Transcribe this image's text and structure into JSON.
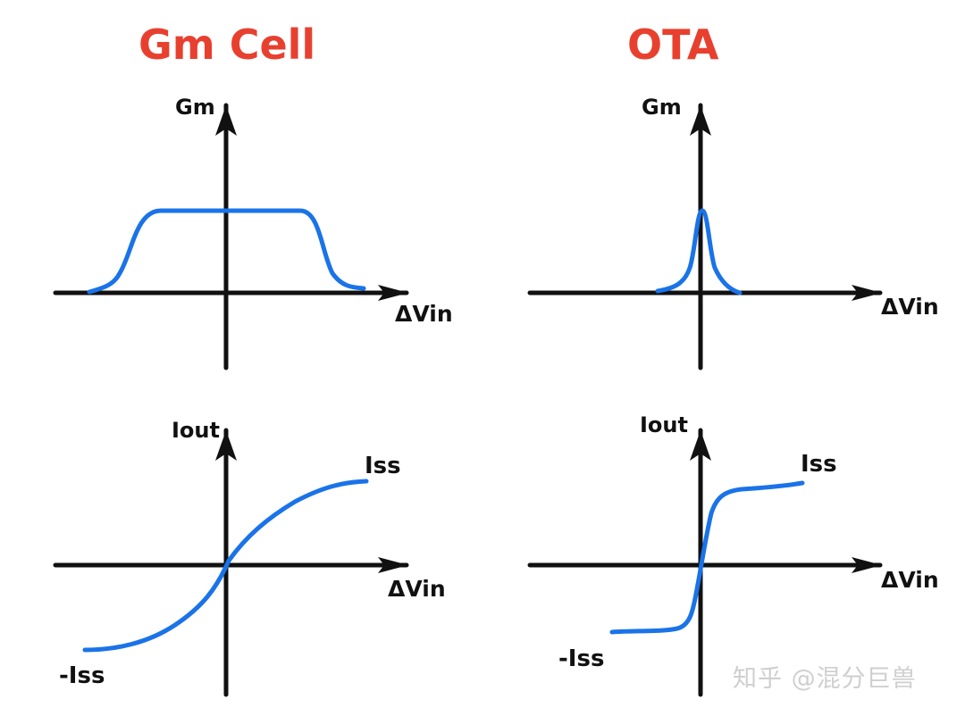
{
  "panels": {
    "gm_cell_title": "Gm Cell",
    "ota_title": "OTA"
  },
  "axes": {
    "gm_label": "Gm",
    "iout_label": "Iout",
    "dvin_label": "ΔVin",
    "iss_label": "Iss",
    "neg_iss_label": "-Iss"
  },
  "watermark": "知乎 @混分巨兽",
  "colors": {
    "title": "#e8402f",
    "curve": "#1a73e8",
    "axis": "#111111",
    "watermark": "#cfcfcf"
  }
}
